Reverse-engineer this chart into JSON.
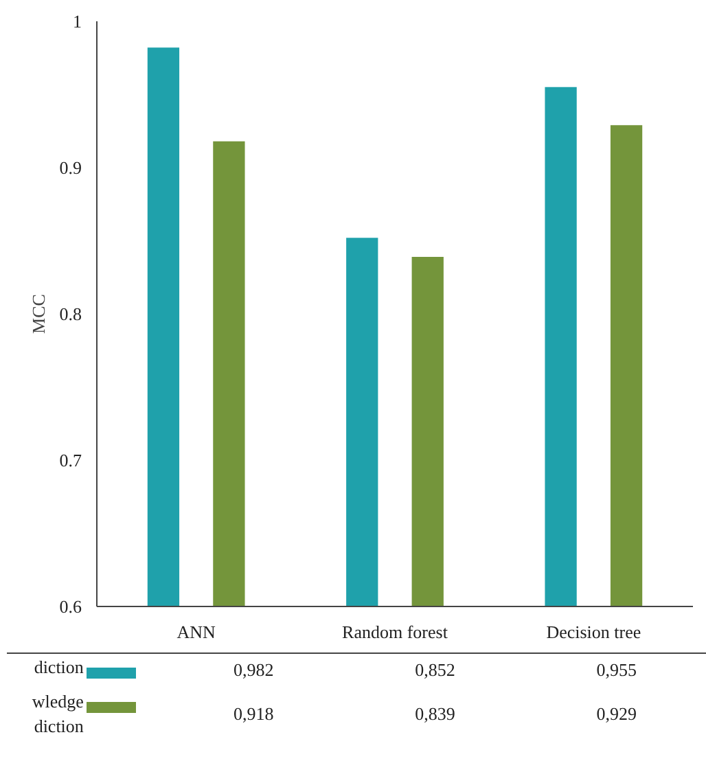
{
  "chart_data": {
    "type": "bar",
    "ylabel": "MCC",
    "categories": [
      "ANN",
      "Random forest",
      "Decision tree"
    ],
    "series": [
      {
        "name": "diction",
        "color": "#1fa1ab",
        "values": [
          0.982,
          0.852,
          0.955
        ],
        "value_labels": [
          "0,982",
          "0,852",
          "0,955"
        ]
      },
      {
        "name": "wledge diction",
        "color": "#74953b",
        "values": [
          0.918,
          0.839,
          0.929
        ],
        "value_labels": [
          "0,918",
          "0,839",
          "0,929"
        ]
      }
    ],
    "ylim": [
      0.6,
      1
    ],
    "yticks": [
      0.6,
      0.7,
      0.8,
      0.9,
      1
    ],
    "grid": false,
    "legend": "bottom"
  }
}
